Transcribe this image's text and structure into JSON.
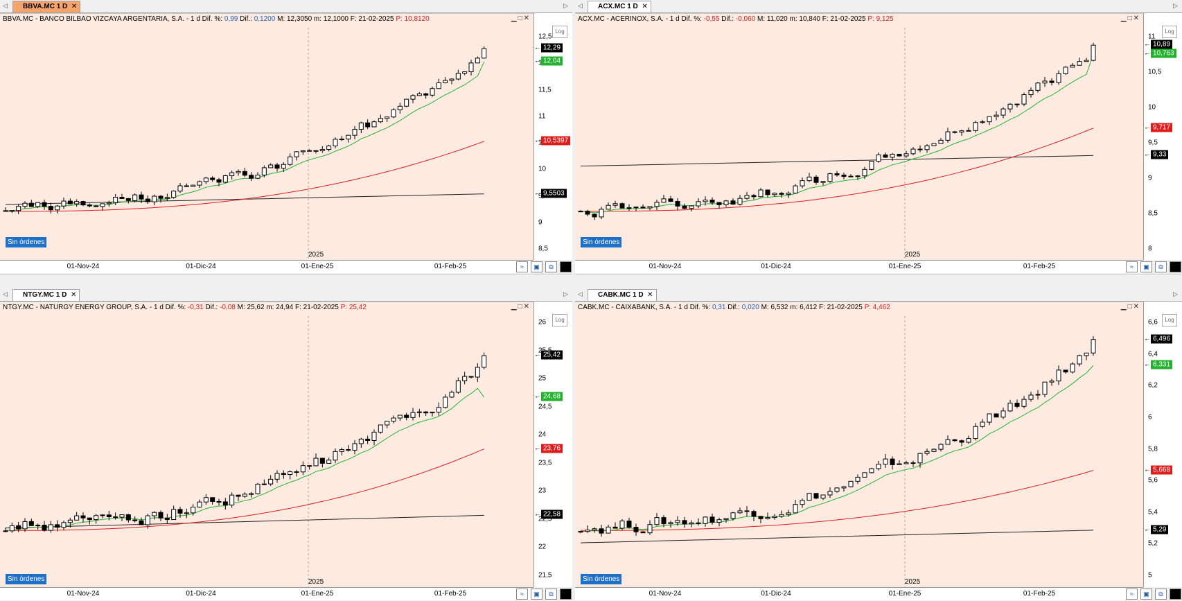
{
  "panels": [
    {
      "id": "bbva",
      "tab": "BBVA.MC 1 D",
      "active": true,
      "title": {
        "ticker": "BBVA.MC - BANCO BILBAO VIZCAYA ARGENTARIA, S.A. -  1 d  Dif. %:",
        "pct": "0,99",
        "dif_lbl": "Dif.:",
        "dif": "0,1200",
        "mid": "M: 12,3050  m: 12,1000  F: 21-02-2025",
        "p": "P: 10,8120"
      },
      "yticks": [
        "12,5",
        "12",
        "11,5",
        "11",
        "10,5",
        "10",
        "9,5",
        "9",
        "8,5"
      ],
      "price_tags": [
        {
          "label": "12,29",
          "color": "#000000",
          "value": 12.29
        },
        {
          "label": "12,04",
          "color": "#22b22e",
          "value": 12.04
        },
        {
          "label": "10,5397",
          "color": "#e01b1b",
          "value": 10.5397
        },
        {
          "label": "9,5503",
          "color": "#000000",
          "value": 9.5503
        }
      ],
      "xticks": [
        "01-Nov-24",
        "01-Dic-24",
        "01-Ene-25",
        "01-Feb-25"
      ],
      "year": "2025",
      "log": "Log",
      "status": "Sin órdenes"
    },
    {
      "id": "acx",
      "tab": "ACX.MC 1 D",
      "active": false,
      "title": {
        "ticker": "ACX.MC - ACERINOX, S.A. -  1 d  Dif. %:",
        "pct": "-0,55",
        "dif_lbl": "Dif.:",
        "dif": "-0,060",
        "mid": "M: 11,020  m: 10,840  F: 21-02-2025",
        "p": "P: 9,125"
      },
      "yticks": [
        "11",
        "10,5",
        "10",
        "9,5",
        "9",
        "8,5",
        "8"
      ],
      "price_tags": [
        {
          "label": "10,89",
          "color": "#000000",
          "value": 10.89
        },
        {
          "label": "10,763",
          "color": "#22b22e",
          "value": 10.763
        },
        {
          "label": "9,717",
          "color": "#e01b1b",
          "value": 9.717
        },
        {
          "label": "9,33",
          "color": "#000000",
          "value": 9.33
        }
      ],
      "xticks": [
        "01-Nov-24",
        "01-Dic-24",
        "01-Ene-25",
        "01-Feb-25"
      ],
      "year": "2025",
      "log": "Log",
      "status": "Sin órdenes"
    },
    {
      "id": "ntgy",
      "tab": "NTGY.MC 1 D",
      "active": false,
      "title": {
        "ticker": "NTGY.MC - NATURGY ENERGY GROUP, S.A. -  1 d  Dif. %:",
        "pct": "-0,31",
        "dif_lbl": "Dif.:",
        "dif": "-0,08",
        "mid": "M: 25,62  m: 24,94  F: 21-02-2025",
        "p": "P: 25,42"
      },
      "yticks": [
        "26",
        "25,5",
        "25",
        "24,5",
        "24",
        "23,5",
        "23",
        "22,5",
        "22",
        "21,5"
      ],
      "price_tags": [
        {
          "label": "25,42",
          "color": "#000000",
          "value": 25.42
        },
        {
          "label": "24,68",
          "color": "#22b22e",
          "value": 24.68
        },
        {
          "label": "23,76",
          "color": "#e01b1b",
          "value": 23.76
        },
        {
          "label": "22,58",
          "color": "#000000",
          "value": 22.58
        }
      ],
      "xticks": [
        "01-Nov-24",
        "01-Dic-24",
        "01-Ene-25",
        "01-Feb-25"
      ],
      "year": "2025",
      "log": "Log",
      "status": "Sin órdenes"
    },
    {
      "id": "cabk",
      "tab": "CABK.MC 1 D",
      "active": false,
      "title": {
        "ticker": "CABK.MC - CAIXABANK, S.A. -  1 d  Dif. %:",
        "pct": "0,31",
        "dif_lbl": "Dif.:",
        "dif": "0,020",
        "mid": "M: 6,532  m: 6,412  F: 21-02-2025",
        "p": "P: 4,462"
      },
      "yticks": [
        "6,6",
        "6,4",
        "6,2",
        "6",
        "5,8",
        "5,6",
        "5,4",
        "5,2",
        "5"
      ],
      "price_tags": [
        {
          "label": "6,496",
          "color": "#000000",
          "value": 6.496
        },
        {
          "label": "6,331",
          "color": "#22b22e",
          "value": 6.331
        },
        {
          "label": "5,668",
          "color": "#e01b1b",
          "value": 5.668
        },
        {
          "label": "5,29",
          "color": "#000000",
          "value": 5.29
        }
      ],
      "xticks": [
        "01-Nov-24",
        "01-Dic-24",
        "01-Ene-25",
        "01-Feb-25"
      ],
      "year": "2025",
      "log": "Log",
      "status": "Sin órdenes"
    }
  ]
}
